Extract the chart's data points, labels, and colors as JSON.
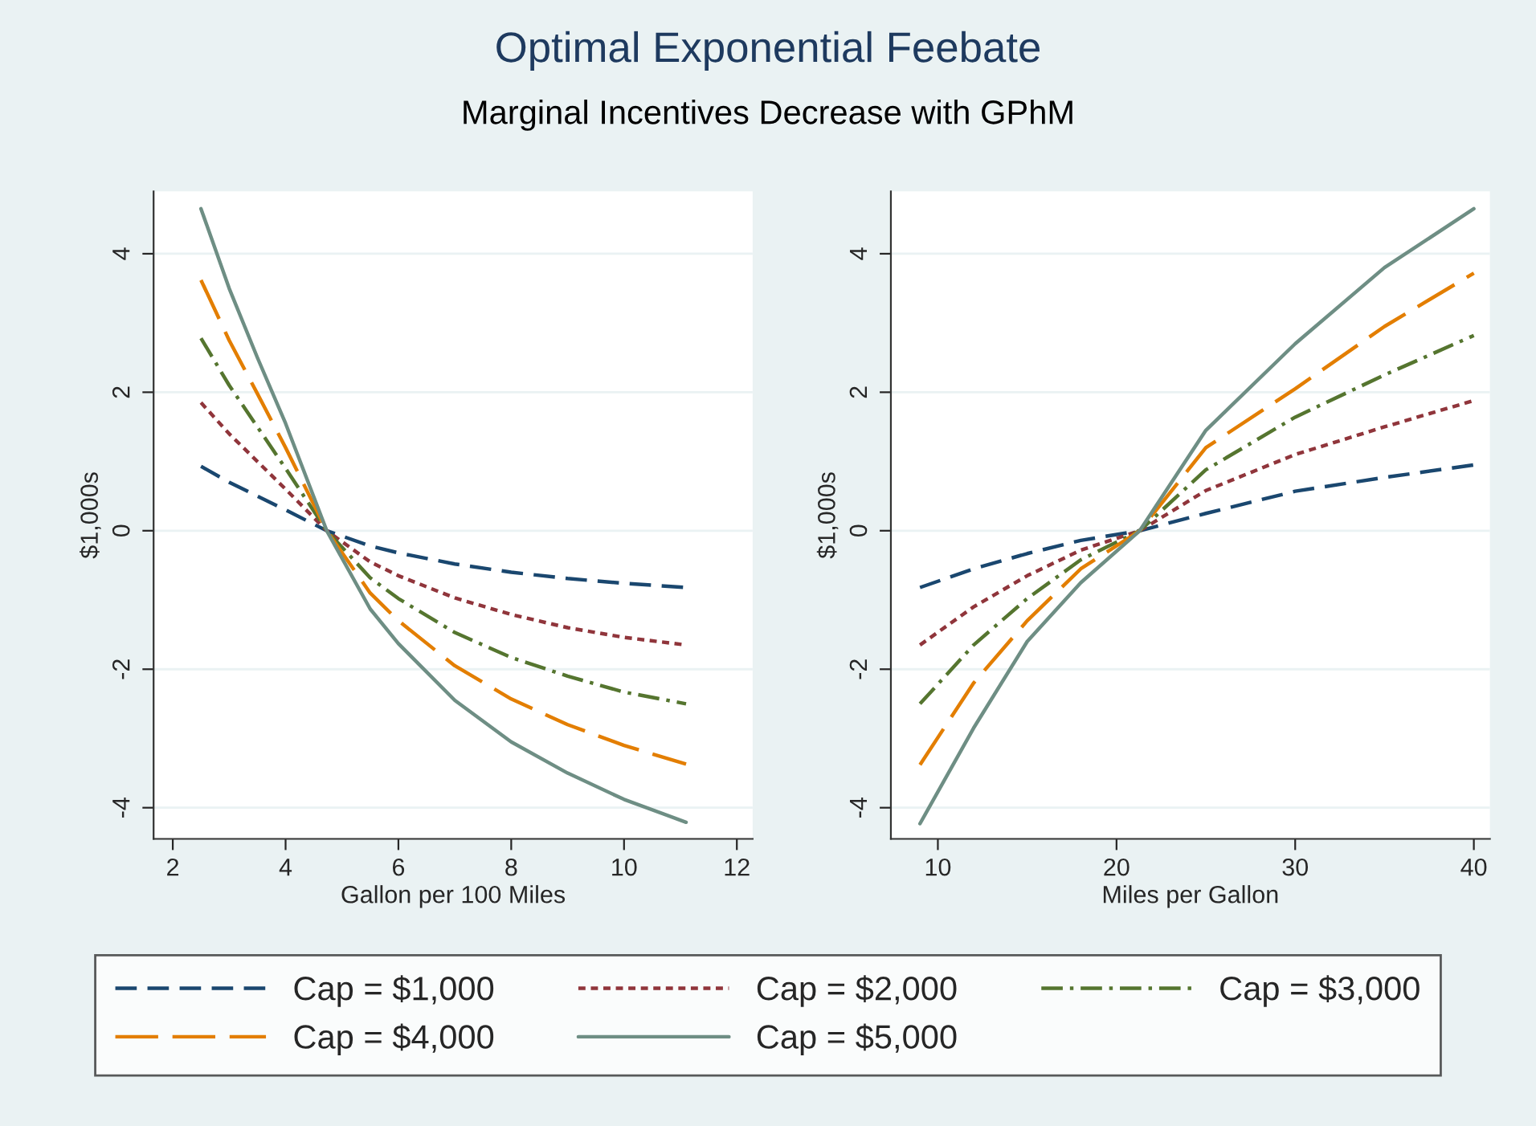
{
  "chart_data": [
    {
      "type": "line",
      "title": "Optimal Exponential Feebate",
      "subtitle": "Marginal Incentives Decrease with GPhM",
      "xlabel": "Gallon per 100 Miles",
      "ylabel": "$1,000s",
      "xlim": [
        1.66,
        12.28
      ],
      "xticks": [
        2,
        4,
        6,
        8,
        10,
        12
      ],
      "ylim": [
        -4.45,
        4.9
      ],
      "yticks": [
        -4,
        -2,
        0,
        2,
        4
      ],
      "grid": "y",
      "legend": "bottom",
      "x": [
        2.5,
        3,
        3.5,
        4,
        4.73,
        5.5,
        6,
        7,
        8,
        9,
        10,
        11.1
      ],
      "series": [
        {
          "name": "Cap = $1,000",
          "color": "#1a476f",
          "line_style": "dashed",
          "values": [
            0.93,
            0.7,
            0.5,
            0.3,
            0.0,
            -0.22,
            -0.32,
            -0.48,
            -0.6,
            -0.69,
            -0.76,
            -0.82
          ]
        },
        {
          "name": "Cap = $2,000",
          "color": "#90353b",
          "line_style": "dotted",
          "values": [
            1.85,
            1.4,
            1.0,
            0.6,
            0.0,
            -0.45,
            -0.65,
            -0.97,
            -1.21,
            -1.4,
            -1.54,
            -1.65
          ]
        },
        {
          "name": "Cap = $3,000",
          "color": "#55752f",
          "line_style": "dashdot",
          "values": [
            2.78,
            2.1,
            1.5,
            0.9,
            0.0,
            -0.68,
            -0.98,
            -1.47,
            -1.83,
            -2.1,
            -2.33,
            -2.5
          ]
        },
        {
          "name": "Cap = $4,000",
          "color": "#e37e00",
          "line_style": "longdash",
          "values": [
            3.62,
            2.75,
            1.98,
            1.2,
            0.0,
            -0.9,
            -1.3,
            -1.95,
            -2.43,
            -2.8,
            -3.1,
            -3.37
          ]
        },
        {
          "name": "Cap = $5,000",
          "color": "#6e8e84",
          "line_style": "solid",
          "values": [
            4.65,
            3.5,
            2.5,
            1.55,
            0.0,
            -1.13,
            -1.63,
            -2.45,
            -3.05,
            -3.5,
            -3.88,
            -4.21
          ]
        }
      ]
    },
    {
      "type": "line",
      "xlabel": "Miles per Gallon",
      "ylabel": "$1,000s",
      "xlim": [
        7.37,
        40.9
      ],
      "xticks": [
        10,
        20,
        30,
        40
      ],
      "ylim": [
        -4.45,
        4.9
      ],
      "yticks": [
        -4,
        -2,
        0,
        2,
        4
      ],
      "grid": "y",
      "x": [
        9,
        12,
        15,
        18,
        21.3,
        25,
        30,
        35,
        40
      ],
      "series": [
        {
          "color": "#1a476f",
          "line_style": "dashed",
          "values": [
            -0.82,
            -0.55,
            -0.33,
            -0.14,
            0.0,
            0.25,
            0.57,
            0.77,
            0.95
          ]
        },
        {
          "color": "#90353b",
          "line_style": "dotted",
          "values": [
            -1.65,
            -1.1,
            -0.65,
            -0.28,
            0.0,
            0.58,
            1.1,
            1.5,
            1.88
          ]
        },
        {
          "color": "#55752f",
          "line_style": "dashdot",
          "values": [
            -2.5,
            -1.65,
            -0.98,
            -0.42,
            0.0,
            0.88,
            1.64,
            2.25,
            2.82
          ]
        },
        {
          "color": "#e37e00",
          "line_style": "longdash",
          "values": [
            -3.38,
            -2.2,
            -1.3,
            -0.55,
            0.0,
            1.2,
            2.05,
            2.95,
            3.72
          ]
        },
        {
          "color": "#6e8e84",
          "line_style": "solid",
          "values": [
            -4.23,
            -2.85,
            -1.6,
            -0.75,
            0.0,
            1.45,
            2.7,
            3.8,
            4.65
          ]
        }
      ]
    }
  ]
}
